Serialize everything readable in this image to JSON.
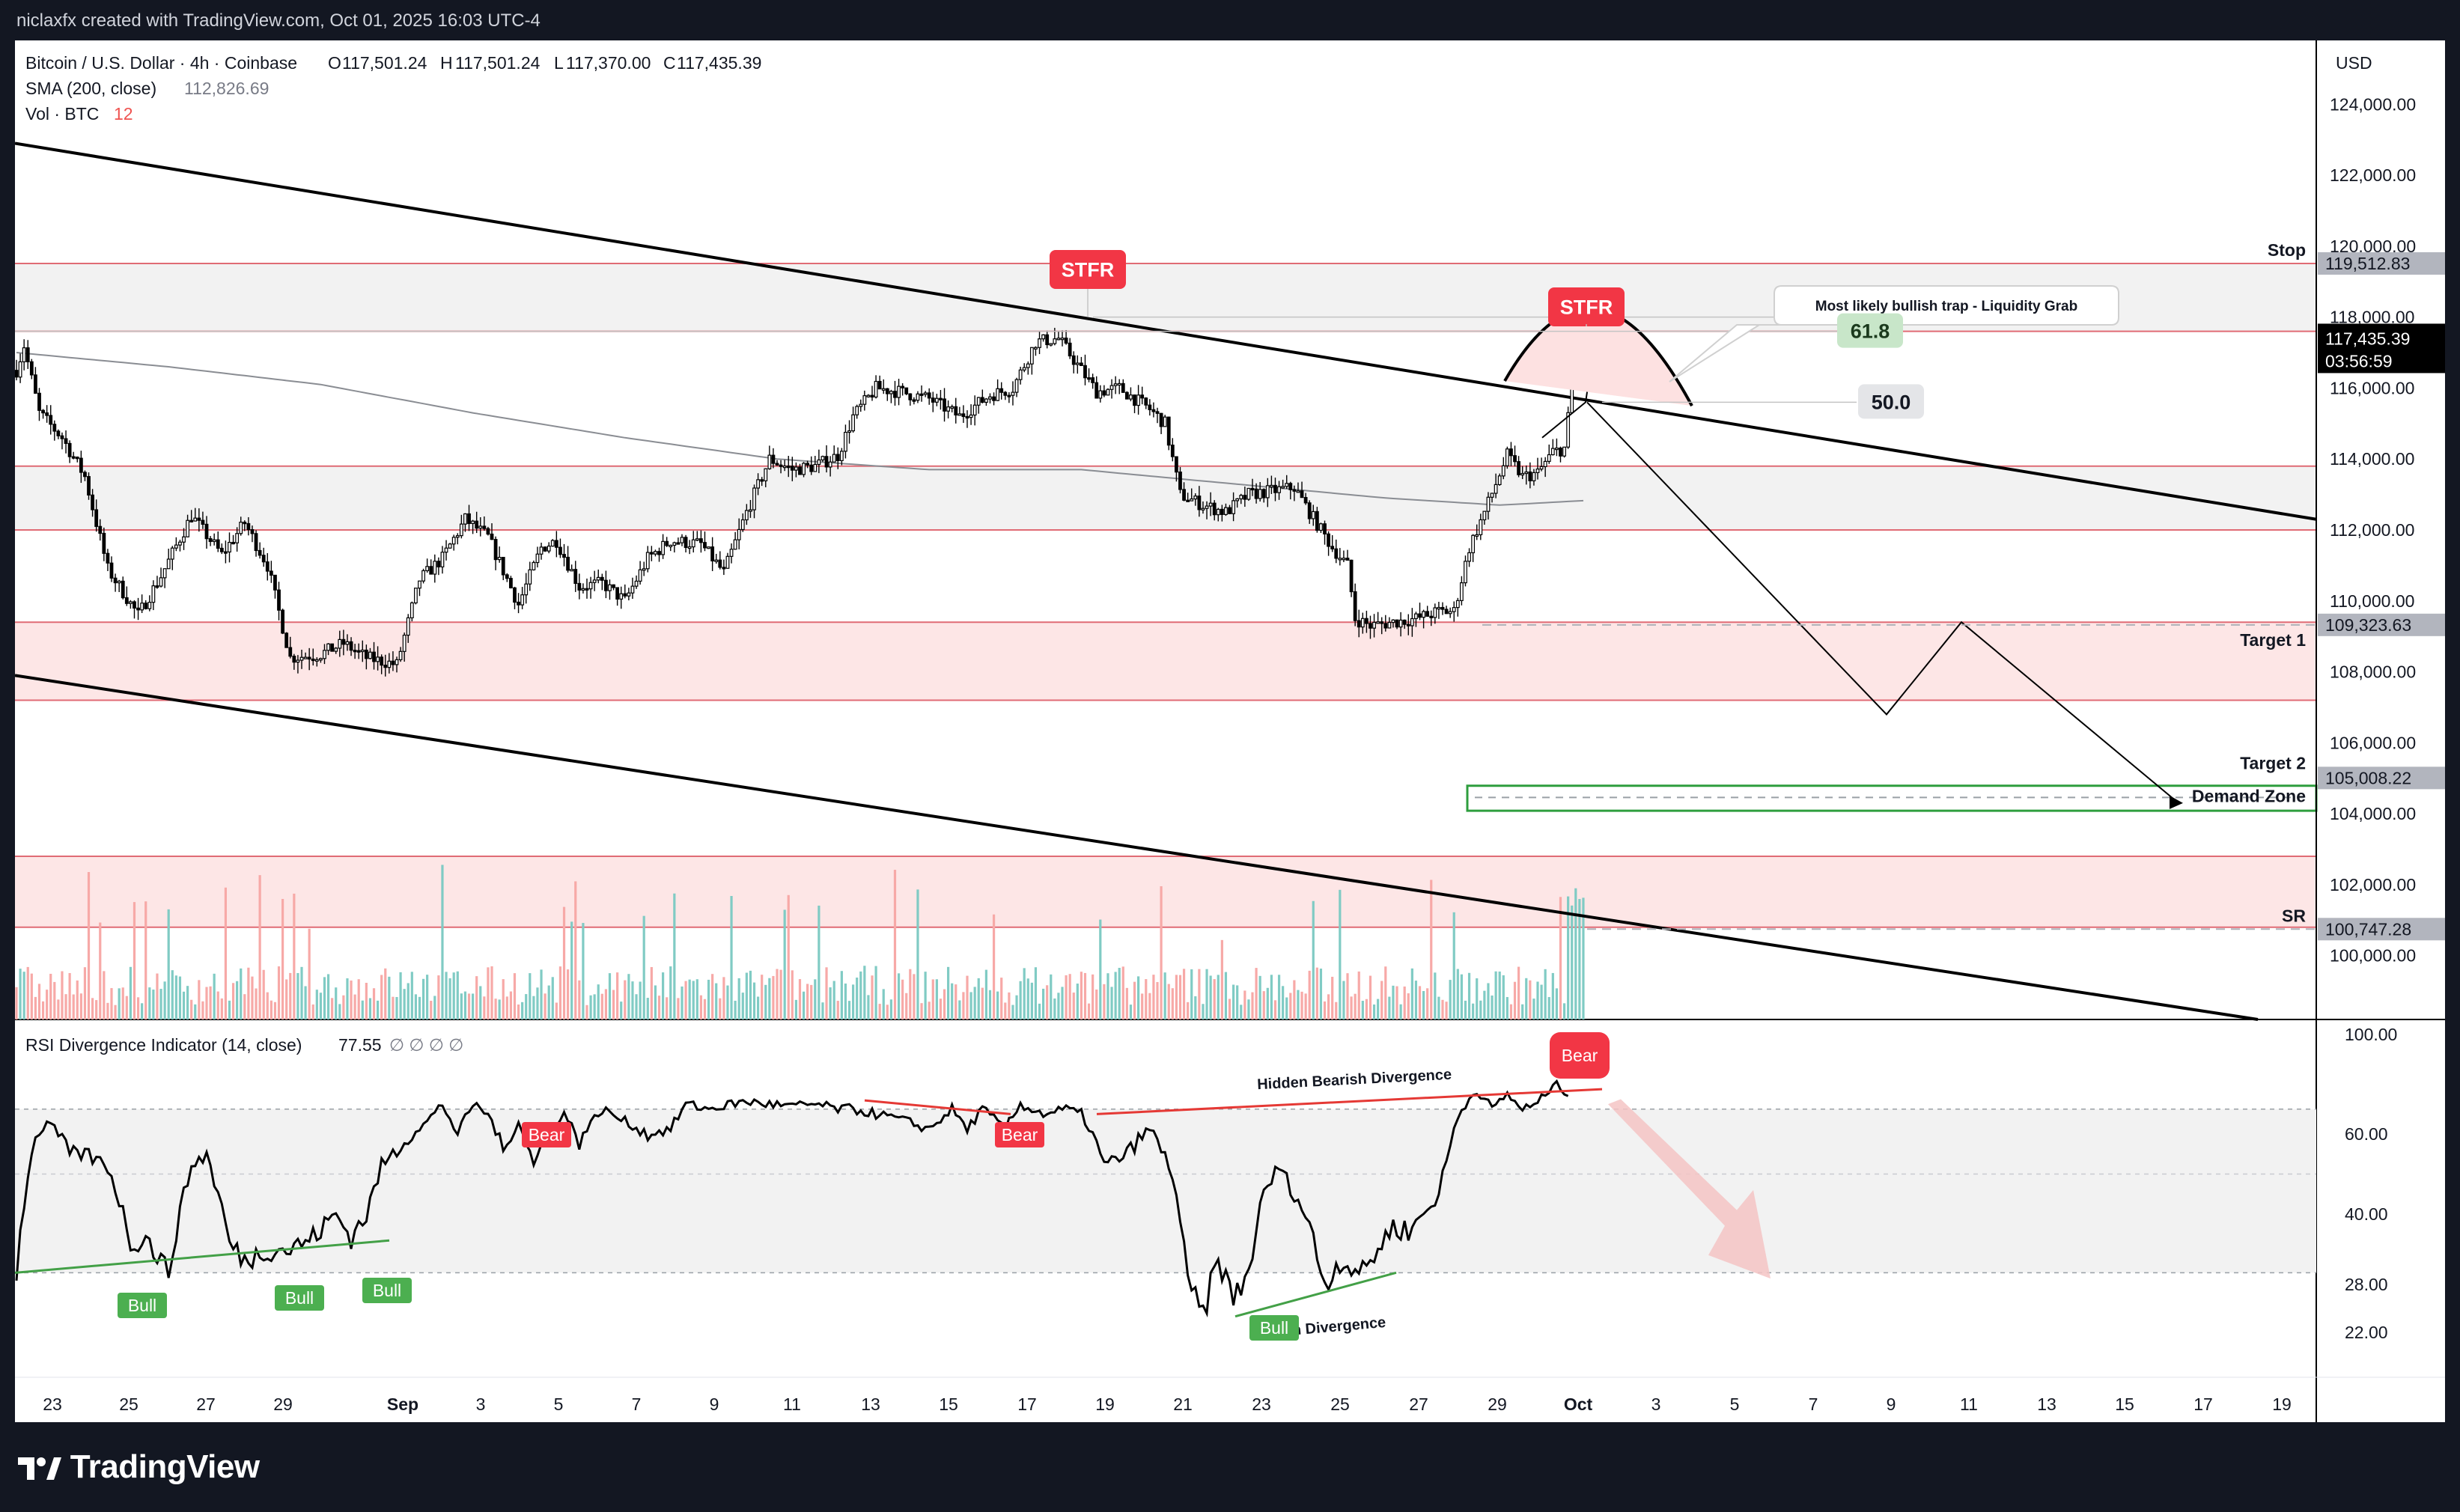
{
  "header": {
    "credit": "niclaxfx created with TradingView.com, Oct 01, 2025 16:03 UTC-4"
  },
  "legend": {
    "symbol": "Bitcoin / U.S. Dollar · 4h · Coinbase",
    "o_label": "O",
    "o": "117,501.24",
    "h_label": "H",
    "h": "117,501.24",
    "l_label": "L",
    "l": "117,370.00",
    "c_label": "C",
    "c": "117,435.39",
    "sma_label": "SMA (200, close)",
    "sma_value": "112,826.69",
    "vol_label": "Vol · BTC",
    "vol_value": "12"
  },
  "rsi_legend": {
    "label": "RSI Divergence Indicator (14, close)",
    "value": "77.55",
    "extras": "∅ ∅ ∅ ∅"
  },
  "brand": {
    "name": "TradingView"
  },
  "colors": {
    "bull": "#26a69a",
    "bear": "#ef5350",
    "label_red": "#f23645",
    "label_green": "#4caf50",
    "zone_fill": "#fde6e6",
    "grey_zone": "#f2f2f2"
  },
  "chart_data": [
    {
      "type": "candlestick",
      "symbol": "Bitcoin / U.S. Dollar",
      "timeframe": "4h",
      "exchange": "Coinbase",
      "currency_label": "USD",
      "x_tick_labels": [
        "23",
        "25",
        "27",
        "29",
        "Sep",
        "3",
        "5",
        "7",
        "9",
        "11",
        "13",
        "15",
        "17",
        "19",
        "21",
        "23",
        "25",
        "27",
        "29",
        "Oct",
        "3",
        "5",
        "7",
        "9",
        "11",
        "13",
        "15",
        "17",
        "19"
      ],
      "y_tick_labels": [
        "124,000.00",
        "122,000.00",
        "120,000.00",
        "118,000.00",
        "116,000.00",
        "114,000.00",
        "112,000.00",
        "110,000.00",
        "108,000.00",
        "106,000.00",
        "104,000.00",
        "102,000.00",
        "100,000.00"
      ],
      "ylim": [
        98200,
        125800
      ],
      "price_path": {
        "x_start": "2025-08-22",
        "bar_hours": 4,
        "anchors": [
          [
            0,
            116500
          ],
          [
            2,
            117200
          ],
          [
            6,
            115300
          ],
          [
            12,
            114600
          ],
          [
            18,
            113500
          ],
          [
            24,
            110900
          ],
          [
            32,
            109600
          ],
          [
            38,
            110700
          ],
          [
            46,
            112400
          ],
          [
            54,
            111300
          ],
          [
            60,
            112200
          ],
          [
            66,
            111000
          ],
          [
            72,
            108400
          ],
          [
            80,
            108500
          ],
          [
            86,
            108800
          ],
          [
            92,
            108400
          ],
          [
            100,
            108200
          ],
          [
            106,
            110600
          ],
          [
            112,
            111200
          ],
          [
            118,
            112300
          ],
          [
            124,
            111800
          ],
          [
            132,
            109900
          ],
          [
            138,
            111500
          ],
          [
            142,
            111700
          ],
          [
            148,
            110400
          ],
          [
            154,
            110500
          ],
          [
            160,
            110000
          ],
          [
            166,
            111200
          ],
          [
            172,
            111700
          ],
          [
            180,
            111600
          ],
          [
            186,
            110800
          ],
          [
            192,
            112500
          ],
          [
            198,
            114000
          ],
          [
            204,
            113700
          ],
          [
            210,
            113800
          ],
          [
            216,
            114100
          ],
          [
            220,
            115200
          ],
          [
            226,
            116000
          ],
          [
            232,
            115900
          ],
          [
            240,
            115700
          ],
          [
            248,
            115200
          ],
          [
            256,
            115800
          ],
          [
            262,
            116000
          ],
          [
            268,
            117300
          ],
          [
            274,
            117400
          ],
          [
            278,
            116800
          ],
          [
            284,
            115900
          ],
          [
            290,
            116000
          ],
          [
            298,
            115400
          ],
          [
            302,
            115000
          ],
          [
            306,
            113000
          ],
          [
            312,
            112700
          ],
          [
            318,
            112500
          ],
          [
            324,
            113000
          ],
          [
            330,
            113100
          ],
          [
            336,
            113200
          ],
          [
            340,
            112500
          ],
          [
            346,
            111500
          ],
          [
            350,
            111000
          ],
          [
            352,
            109500
          ],
          [
            356,
            109300
          ],
          [
            362,
            109400
          ],
          [
            368,
            109500
          ],
          [
            374,
            109700
          ],
          [
            378,
            109700
          ],
          [
            382,
            111500
          ],
          [
            386,
            112500
          ],
          [
            392,
            114100
          ],
          [
            396,
            113500
          ],
          [
            400,
            113600
          ],
          [
            404,
            114200
          ],
          [
            407,
            114300
          ],
          [
            410,
            116900
          ],
          [
            412,
            117435
          ]
        ]
      },
      "last_price": "117,435.39",
      "countdown": "03:56:59",
      "sma": {
        "label": "SMA (200, close)",
        "value": 112826.69
      },
      "levels": [
        {
          "price": 119512.83,
          "label": "Stop",
          "tag": "119,512.83"
        },
        {
          "price": 109323.63,
          "label": "Target 1",
          "tag": "109,323.63"
        },
        {
          "price": 105008.22,
          "label": "Target 2",
          "tag": "105,008.22"
        },
        {
          "price": 100747.28,
          "label": "SR",
          "tag": "100,747.28"
        }
      ],
      "zones": [
        {
          "from": 117600,
          "to": 119512.83,
          "fill": "grey"
        },
        {
          "from": 112000,
          "to": 113800,
          "fill": "grey"
        },
        {
          "from": 107200,
          "to": 109400,
          "fill": "pink"
        },
        {
          "from": 100800,
          "to": 102800,
          "fill": "pink"
        },
        {
          "from": 104000,
          "to": 105000,
          "label": "Demand Zone"
        }
      ],
      "fib_labels": [
        {
          "text": "61.8",
          "price": 117600
        },
        {
          "text": "50.0",
          "price": 115600
        }
      ],
      "annotations": [
        "STFR",
        "STFR",
        "Most likely bullish trap - Liquidity Grab"
      ]
    },
    {
      "type": "line",
      "name": "RSI Divergence Indicator (14, close)",
      "value": "77.55",
      "ylim": [
        15,
        100
      ],
      "y_tick_labels": [
        "100.00",
        "60.00",
        "40.00",
        "28.00",
        "22.00"
      ],
      "bands": [
        [
          70,
          30
        ],
        [
          50,
          70
        ]
      ],
      "anchors": [
        [
          0,
          30
        ],
        [
          4,
          56
        ],
        [
          8,
          65
        ],
        [
          14,
          55
        ],
        [
          18,
          55
        ],
        [
          24,
          52
        ],
        [
          30,
          35
        ],
        [
          34,
          36
        ],
        [
          40,
          30
        ],
        [
          46,
          52
        ],
        [
          50,
          55
        ],
        [
          56,
          35
        ],
        [
          60,
          32
        ],
        [
          66,
          34
        ],
        [
          72,
          34
        ],
        [
          78,
          36
        ],
        [
          84,
          40
        ],
        [
          88,
          36
        ],
        [
          92,
          40
        ],
        [
          96,
          52
        ],
        [
          102,
          58
        ],
        [
          108,
          65
        ],
        [
          112,
          72
        ],
        [
          116,
          60
        ],
        [
          120,
          72
        ],
        [
          124,
          68
        ],
        [
          128,
          55
        ],
        [
          132,
          65
        ],
        [
          136,
          52
        ],
        [
          140,
          62
        ],
        [
          144,
          68
        ],
        [
          148,
          58
        ],
        [
          154,
          70
        ],
        [
          160,
          65
        ],
        [
          166,
          60
        ],
        [
          172,
          62
        ],
        [
          176,
          72
        ],
        [
          182,
          70
        ],
        [
          188,
          72
        ],
        [
          192,
          73
        ],
        [
          198,
          72
        ],
        [
          204,
          71
        ],
        [
          210,
          72
        ],
        [
          216,
          70
        ],
        [
          220,
          70
        ],
        [
          226,
          68
        ],
        [
          232,
          66
        ],
        [
          240,
          62
        ],
        [
          246,
          70
        ],
        [
          250,
          62
        ],
        [
          254,
          70
        ],
        [
          260,
          62
        ],
        [
          264,
          72
        ],
        [
          270,
          68
        ],
        [
          276,
          70
        ],
        [
          280,
          68
        ],
        [
          286,
          52
        ],
        [
          292,
          55
        ],
        [
          298,
          62
        ],
        [
          304,
          50
        ],
        [
          308,
          28
        ],
        [
          312,
          24
        ],
        [
          316,
          32
        ],
        [
          320,
          26
        ],
        [
          324,
          30
        ],
        [
          328,
          45
        ],
        [
          332,
          52
        ],
        [
          336,
          45
        ],
        [
          340,
          38
        ],
        [
          344,
          28
        ],
        [
          348,
          32
        ],
        [
          354,
          30
        ],
        [
          358,
          34
        ],
        [
          362,
          38
        ],
        [
          366,
          37
        ],
        [
          370,
          40
        ],
        [
          374,
          45
        ],
        [
          380,
          70
        ],
        [
          384,
          78
        ],
        [
          388,
          70
        ],
        [
          392,
          76
        ],
        [
          396,
          70
        ],
        [
          400,
          72
        ],
        [
          404,
          80
        ],
        [
          408,
          77
        ]
      ],
      "labels": [
        {
          "text": "Bull",
          "kind": "bull"
        },
        {
          "text": "Bull",
          "kind": "bull"
        },
        {
          "text": "Bull",
          "kind": "bull"
        },
        {
          "text": "Bear",
          "kind": "bear"
        },
        {
          "text": "Bear",
          "kind": "bear"
        },
        {
          "text": "Bear",
          "kind": "bear"
        },
        {
          "text": "Bull",
          "kind": "bull"
        }
      ],
      "annotations": [
        "Hidden Bearish Divergence",
        "Bullish Divergence"
      ]
    }
  ]
}
